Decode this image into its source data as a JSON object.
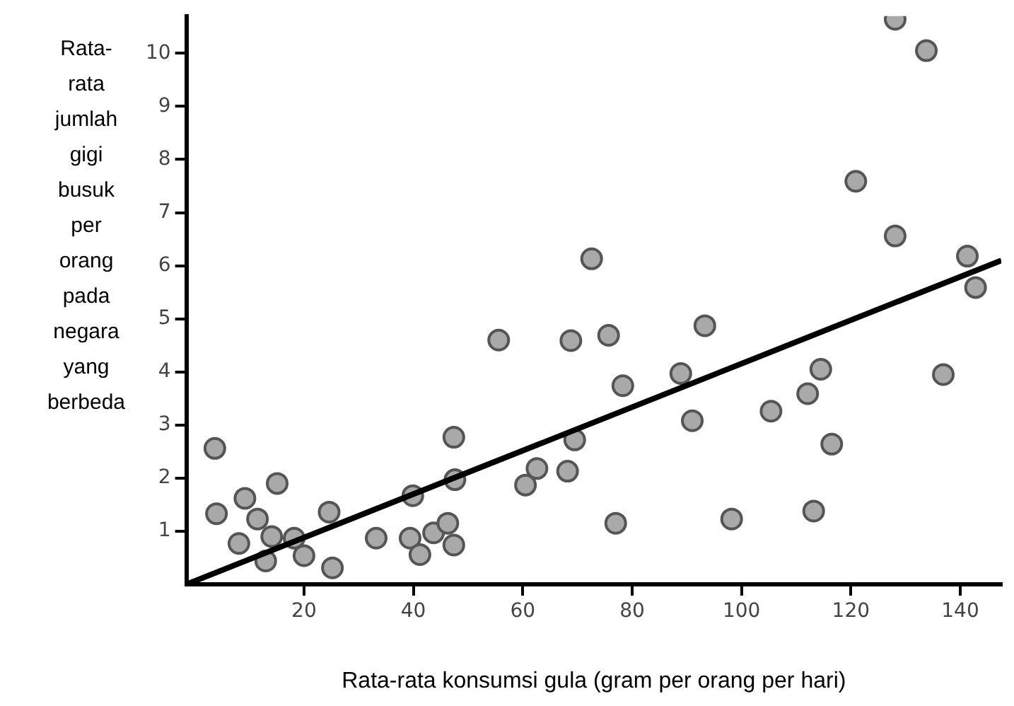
{
  "chart_data": {
    "type": "scatter",
    "xlabel": "Rata-rata konsumsi gula (gram per orang per hari)",
    "ylabel": "Rata-rata jumlah gigi busuk per orang pada negara yang berbeda",
    "xlim": [
      -1.5,
      147.5
    ],
    "ylim": [
      0,
      10.7
    ],
    "xticks": [
      20,
      40,
      60,
      80,
      100,
      120,
      140
    ],
    "yticks": [
      1,
      2,
      3,
      4,
      5,
      6,
      7,
      8,
      9,
      10
    ],
    "grid": false,
    "legend": false,
    "series": [
      {
        "marker": "circle",
        "color": "#a9a9a9",
        "x": [
          3.7,
          4.0,
          8.1,
          9.2,
          11.5,
          13.0,
          14.1,
          15.1,
          18.2,
          20.0,
          24.6,
          25.2,
          33.2,
          39.4,
          39.9,
          41.2,
          43.7,
          46.3,
          47.4,
          47.6,
          47.4,
          55.6,
          60.5,
          62.6,
          68.2,
          68.8,
          69.5,
          72.6,
          75.7,
          77.0,
          78.3,
          88.9,
          91.0,
          93.3,
          98.2,
          105.4,
          112.1,
          114.5,
          113.2,
          116.5,
          120.9,
          128.1,
          128.1,
          133.8,
          136.9,
          141.3,
          142.8
        ],
        "values": [
          2.56,
          1.33,
          0.77,
          1.62,
          1.23,
          0.44,
          0.9,
          1.9,
          0.87,
          0.54,
          1.36,
          0.31,
          0.87,
          0.87,
          1.67,
          0.56,
          0.97,
          1.15,
          0.74,
          1.97,
          2.77,
          4.6,
          1.87,
          2.18,
          2.13,
          4.59,
          2.72,
          6.13,
          4.69,
          1.15,
          3.74,
          3.97,
          3.08,
          4.87,
          1.23,
          3.26,
          3.59,
          4.05,
          1.38,
          2.64,
          7.59,
          6.56,
          10.64,
          10.05,
          3.95,
          6.18,
          5.59
        ]
      },
      {
        "type": "line",
        "marker": "none",
        "color": "#000000",
        "x": [
          -1.5,
          147.5
        ],
        "values": [
          0,
          6.1
        ]
      }
    ]
  }
}
